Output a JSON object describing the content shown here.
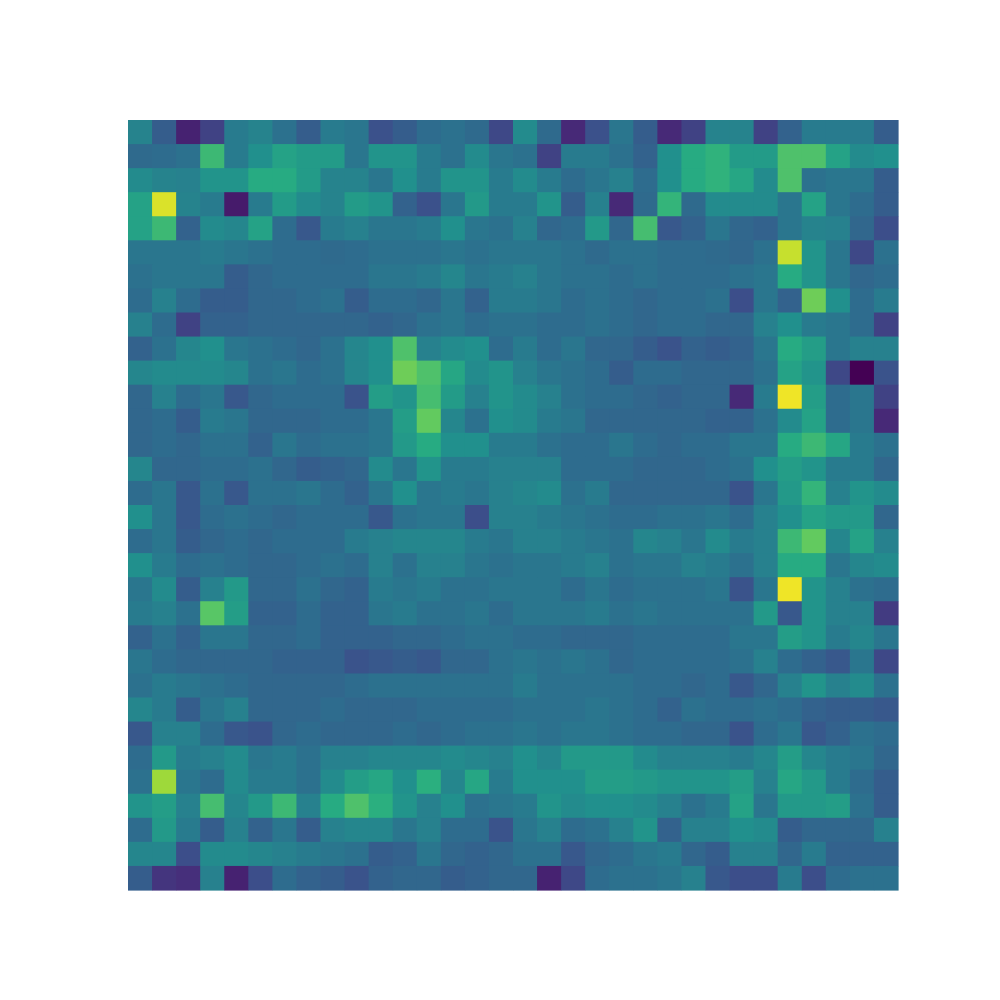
{
  "chart_data": {
    "type": "heatmap",
    "colormap": "viridis",
    "axes_visible": false,
    "grid": false,
    "legend": "none",
    "rows": 32,
    "cols": 32,
    "value_range": [
      0,
      1
    ],
    "values": [
      [
        0.45,
        0.3,
        0.1,
        0.2,
        0.42,
        0.45,
        0.38,
        0.3,
        0.42,
        0.4,
        0.25,
        0.3,
        0.36,
        0.38,
        0.35,
        0.22,
        0.48,
        0.35,
        0.12,
        0.25,
        0.4,
        0.3,
        0.12,
        0.2,
        0.45,
        0.45,
        0.2,
        0.32,
        0.42,
        0.42,
        0.42,
        0.3
      ],
      [
        0.35,
        0.36,
        0.38,
        0.68,
        0.42,
        0.5,
        0.58,
        0.55,
        0.55,
        0.4,
        0.52,
        0.52,
        0.42,
        0.38,
        0.48,
        0.4,
        0.38,
        0.2,
        0.42,
        0.42,
        0.38,
        0.32,
        0.5,
        0.62,
        0.65,
        0.55,
        0.55,
        0.72,
        0.72,
        0.58,
        0.48,
        0.5
      ],
      [
        0.48,
        0.45,
        0.44,
        0.52,
        0.52,
        0.62,
        0.62,
        0.55,
        0.45,
        0.45,
        0.4,
        0.5,
        0.42,
        0.52,
        0.52,
        0.42,
        0.48,
        0.42,
        0.36,
        0.4,
        0.44,
        0.36,
        0.5,
        0.62,
        0.65,
        0.6,
        0.48,
        0.72,
        0.38,
        0.4,
        0.4,
        0.3
      ],
      [
        0.58,
        0.95,
        0.45,
        0.42,
        0.08,
        0.42,
        0.55,
        0.48,
        0.45,
        0.55,
        0.52,
        0.32,
        0.25,
        0.4,
        0.54,
        0.42,
        0.42,
        0.52,
        0.3,
        0.44,
        0.12,
        0.35,
        0.66,
        0.35,
        0.48,
        0.48,
        0.48,
        0.4,
        0.58,
        0.4,
        0.36,
        0.3
      ],
      [
        0.58,
        0.68,
        0.32,
        0.48,
        0.46,
        0.58,
        0.36,
        0.28,
        0.42,
        0.44,
        0.4,
        0.4,
        0.42,
        0.5,
        0.4,
        0.38,
        0.44,
        0.34,
        0.36,
        0.54,
        0.34,
        0.7,
        0.28,
        0.32,
        0.4,
        0.34,
        0.32,
        0.4,
        0.45,
        0.44,
        0.34,
        0.24
      ],
      [
        0.4,
        0.4,
        0.4,
        0.42,
        0.4,
        0.38,
        0.36,
        0.36,
        0.35,
        0.36,
        0.38,
        0.38,
        0.38,
        0.4,
        0.38,
        0.4,
        0.4,
        0.4,
        0.38,
        0.35,
        0.38,
        0.38,
        0.36,
        0.36,
        0.35,
        0.34,
        0.38,
        0.92,
        0.52,
        0.4,
        0.22,
        0.38
      ],
      [
        0.38,
        0.4,
        0.4,
        0.4,
        0.3,
        0.34,
        0.36,
        0.36,
        0.36,
        0.36,
        0.4,
        0.4,
        0.42,
        0.46,
        0.4,
        0.42,
        0.44,
        0.4,
        0.38,
        0.38,
        0.36,
        0.38,
        0.36,
        0.36,
        0.36,
        0.38,
        0.4,
        0.62,
        0.52,
        0.4,
        0.34,
        0.36
      ],
      [
        0.36,
        0.44,
        0.36,
        0.3,
        0.3,
        0.34,
        0.34,
        0.36,
        0.38,
        0.3,
        0.36,
        0.36,
        0.34,
        0.4,
        0.32,
        0.42,
        0.42,
        0.4,
        0.36,
        0.38,
        0.36,
        0.34,
        0.36,
        0.36,
        0.38,
        0.24,
        0.4,
        0.32,
        0.78,
        0.5,
        0.36,
        0.42
      ],
      [
        0.44,
        0.36,
        0.2,
        0.32,
        0.32,
        0.34,
        0.34,
        0.34,
        0.34,
        0.34,
        0.32,
        0.34,
        0.38,
        0.4,
        0.36,
        0.38,
        0.38,
        0.36,
        0.36,
        0.38,
        0.36,
        0.34,
        0.36,
        0.36,
        0.34,
        0.34,
        0.44,
        0.5,
        0.42,
        0.4,
        0.36,
        0.2
      ],
      [
        0.32,
        0.38,
        0.46,
        0.5,
        0.4,
        0.38,
        0.36,
        0.34,
        0.38,
        0.46,
        0.5,
        0.72,
        0.44,
        0.48,
        0.5,
        0.36,
        0.42,
        0.36,
        0.4,
        0.34,
        0.34,
        0.3,
        0.26,
        0.32,
        0.3,
        0.32,
        0.4,
        0.62,
        0.56,
        0.4,
        0.44,
        0.44
      ],
      [
        0.46,
        0.48,
        0.48,
        0.48,
        0.46,
        0.38,
        0.4,
        0.36,
        0.38,
        0.46,
        0.5,
        0.78,
        0.72,
        0.6,
        0.48,
        0.52,
        0.44,
        0.4,
        0.38,
        0.36,
        0.3,
        0.36,
        0.36,
        0.34,
        0.34,
        0.34,
        0.38,
        0.58,
        0.52,
        0.22,
        0.0,
        0.26
      ],
      [
        0.34,
        0.44,
        0.36,
        0.4,
        0.28,
        0.34,
        0.36,
        0.36,
        0.36,
        0.26,
        0.56,
        0.52,
        0.7,
        0.55,
        0.44,
        0.52,
        0.48,
        0.44,
        0.38,
        0.36,
        0.36,
        0.34,
        0.32,
        0.34,
        0.34,
        0.12,
        0.42,
        0.98,
        0.56,
        0.36,
        0.4,
        0.2
      ],
      [
        0.34,
        0.36,
        0.3,
        0.42,
        0.4,
        0.34,
        0.34,
        0.34,
        0.36,
        0.36,
        0.4,
        0.56,
        0.76,
        0.46,
        0.38,
        0.5,
        0.48,
        0.42,
        0.4,
        0.34,
        0.34,
        0.34,
        0.34,
        0.34,
        0.32,
        0.32,
        0.38,
        0.48,
        0.58,
        0.36,
        0.4,
        0.12
      ],
      [
        0.34,
        0.36,
        0.34,
        0.38,
        0.38,
        0.32,
        0.4,
        0.36,
        0.38,
        0.38,
        0.4,
        0.54,
        0.62,
        0.5,
        0.5,
        0.42,
        0.42,
        0.38,
        0.36,
        0.36,
        0.4,
        0.36,
        0.34,
        0.36,
        0.36,
        0.4,
        0.4,
        0.62,
        0.68,
        0.6,
        0.42,
        0.38
      ],
      [
        0.46,
        0.34,
        0.34,
        0.36,
        0.36,
        0.38,
        0.34,
        0.3,
        0.32,
        0.34,
        0.48,
        0.4,
        0.52,
        0.42,
        0.42,
        0.44,
        0.44,
        0.44,
        0.36,
        0.36,
        0.36,
        0.34,
        0.34,
        0.34,
        0.36,
        0.38,
        0.5,
        0.56,
        0.52,
        0.42,
        0.42,
        0.34
      ],
      [
        0.36,
        0.4,
        0.28,
        0.38,
        0.28,
        0.38,
        0.38,
        0.4,
        0.36,
        0.32,
        0.4,
        0.5,
        0.4,
        0.42,
        0.4,
        0.44,
        0.46,
        0.48,
        0.38,
        0.42,
        0.34,
        0.34,
        0.34,
        0.34,
        0.34,
        0.26,
        0.4,
        0.54,
        0.66,
        0.44,
        0.52,
        0.48
      ],
      [
        0.5,
        0.4,
        0.28,
        0.36,
        0.38,
        0.36,
        0.34,
        0.36,
        0.36,
        0.36,
        0.28,
        0.38,
        0.4,
        0.4,
        0.24,
        0.44,
        0.44,
        0.42,
        0.4,
        0.38,
        0.36,
        0.36,
        0.38,
        0.38,
        0.4,
        0.36,
        0.44,
        0.5,
        0.58,
        0.54,
        0.54,
        0.34
      ],
      [
        0.36,
        0.4,
        0.3,
        0.34,
        0.36,
        0.34,
        0.36,
        0.36,
        0.36,
        0.42,
        0.44,
        0.46,
        0.46,
        0.46,
        0.42,
        0.4,
        0.44,
        0.44,
        0.42,
        0.4,
        0.38,
        0.46,
        0.44,
        0.4,
        0.48,
        0.42,
        0.44,
        0.68,
        0.76,
        0.46,
        0.58,
        0.44
      ],
      [
        0.5,
        0.42,
        0.36,
        0.38,
        0.36,
        0.34,
        0.34,
        0.36,
        0.38,
        0.36,
        0.44,
        0.38,
        0.44,
        0.44,
        0.4,
        0.38,
        0.4,
        0.4,
        0.42,
        0.44,
        0.38,
        0.4,
        0.4,
        0.44,
        0.42,
        0.38,
        0.44,
        0.62,
        0.62,
        0.4,
        0.46,
        0.48
      ],
      [
        0.4,
        0.48,
        0.3,
        0.44,
        0.54,
        0.34,
        0.34,
        0.38,
        0.34,
        0.32,
        0.42,
        0.4,
        0.42,
        0.38,
        0.38,
        0.4,
        0.4,
        0.4,
        0.36,
        0.4,
        0.36,
        0.38,
        0.38,
        0.38,
        0.4,
        0.26,
        0.4,
        0.98,
        0.52,
        0.44,
        0.38,
        0.36
      ],
      [
        0.42,
        0.44,
        0.38,
        0.74,
        0.56,
        0.32,
        0.32,
        0.36,
        0.32,
        0.32,
        0.4,
        0.42,
        0.38,
        0.38,
        0.4,
        0.36,
        0.4,
        0.4,
        0.4,
        0.42,
        0.38,
        0.4,
        0.38,
        0.38,
        0.38,
        0.38,
        0.54,
        0.28,
        0.52,
        0.44,
        0.44,
        0.18
      ],
      [
        0.32,
        0.38,
        0.32,
        0.4,
        0.4,
        0.34,
        0.34,
        0.36,
        0.32,
        0.32,
        0.32,
        0.34,
        0.34,
        0.36,
        0.38,
        0.38,
        0.36,
        0.36,
        0.34,
        0.34,
        0.34,
        0.36,
        0.36,
        0.36,
        0.36,
        0.4,
        0.4,
        0.56,
        0.52,
        0.42,
        0.46,
        0.4
      ],
      [
        0.4,
        0.36,
        0.34,
        0.34,
        0.34,
        0.34,
        0.32,
        0.32,
        0.32,
        0.26,
        0.28,
        0.3,
        0.28,
        0.34,
        0.34,
        0.38,
        0.4,
        0.38,
        0.4,
        0.38,
        0.34,
        0.36,
        0.36,
        0.36,
        0.36,
        0.38,
        0.44,
        0.36,
        0.32,
        0.28,
        0.4,
        0.22
      ],
      [
        0.38,
        0.42,
        0.4,
        0.38,
        0.36,
        0.34,
        0.34,
        0.34,
        0.34,
        0.36,
        0.38,
        0.38,
        0.38,
        0.38,
        0.38,
        0.38,
        0.42,
        0.38,
        0.38,
        0.38,
        0.38,
        0.36,
        0.36,
        0.34,
        0.36,
        0.28,
        0.34,
        0.44,
        0.52,
        0.44,
        0.48,
        0.38
      ],
      [
        0.46,
        0.42,
        0.3,
        0.4,
        0.44,
        0.34,
        0.34,
        0.34,
        0.36,
        0.34,
        0.34,
        0.34,
        0.36,
        0.36,
        0.36,
        0.36,
        0.38,
        0.38,
        0.38,
        0.4,
        0.38,
        0.36,
        0.32,
        0.38,
        0.36,
        0.36,
        0.38,
        0.36,
        0.32,
        0.3,
        0.3,
        0.28
      ],
      [
        0.28,
        0.44,
        0.44,
        0.36,
        0.28,
        0.26,
        0.34,
        0.36,
        0.34,
        0.34,
        0.34,
        0.36,
        0.34,
        0.36,
        0.38,
        0.38,
        0.4,
        0.38,
        0.4,
        0.4,
        0.38,
        0.36,
        0.36,
        0.34,
        0.34,
        0.26,
        0.36,
        0.4,
        0.28,
        0.32,
        0.38,
        0.36
      ],
      [
        0.36,
        0.54,
        0.42,
        0.44,
        0.48,
        0.4,
        0.42,
        0.38,
        0.44,
        0.44,
        0.46,
        0.46,
        0.46,
        0.48,
        0.46,
        0.44,
        0.5,
        0.46,
        0.54,
        0.54,
        0.54,
        0.48,
        0.44,
        0.44,
        0.44,
        0.42,
        0.46,
        0.56,
        0.46,
        0.42,
        0.4,
        0.34
      ],
      [
        0.38,
        0.86,
        0.4,
        0.36,
        0.48,
        0.42,
        0.42,
        0.38,
        0.48,
        0.56,
        0.6,
        0.5,
        0.64,
        0.46,
        0.6,
        0.42,
        0.5,
        0.5,
        0.5,
        0.56,
        0.56,
        0.54,
        0.52,
        0.52,
        0.52,
        0.56,
        0.44,
        0.6,
        0.54,
        0.42,
        0.36,
        0.3
      ],
      [
        0.52,
        0.56,
        0.44,
        0.7,
        0.46,
        0.54,
        0.68,
        0.44,
        0.62,
        0.72,
        0.64,
        0.52,
        0.44,
        0.5,
        0.38,
        0.4,
        0.42,
        0.52,
        0.48,
        0.5,
        0.5,
        0.48,
        0.44,
        0.38,
        0.42,
        0.58,
        0.4,
        0.54,
        0.54,
        0.56,
        0.38,
        0.3
      ],
      [
        0.36,
        0.54,
        0.42,
        0.3,
        0.44,
        0.32,
        0.4,
        0.3,
        0.44,
        0.46,
        0.46,
        0.4,
        0.44,
        0.36,
        0.36,
        0.26,
        0.4,
        0.44,
        0.36,
        0.38,
        0.44,
        0.52,
        0.32,
        0.44,
        0.44,
        0.5,
        0.48,
        0.3,
        0.34,
        0.34,
        0.34,
        0.44
      ],
      [
        0.46,
        0.46,
        0.24,
        0.48,
        0.48,
        0.46,
        0.44,
        0.42,
        0.4,
        0.38,
        0.3,
        0.32,
        0.4,
        0.34,
        0.32,
        0.34,
        0.38,
        0.38,
        0.28,
        0.34,
        0.36,
        0.4,
        0.42,
        0.34,
        0.3,
        0.44,
        0.44,
        0.34,
        0.42,
        0.32,
        0.32,
        0.32
      ],
      [
        0.3,
        0.16,
        0.14,
        0.44,
        0.1,
        0.24,
        0.36,
        0.32,
        0.3,
        0.26,
        0.32,
        0.34,
        0.34,
        0.3,
        0.32,
        0.34,
        0.34,
        0.1,
        0.22,
        0.36,
        0.38,
        0.38,
        0.4,
        0.44,
        0.28,
        0.24,
        0.24,
        0.42,
        0.24,
        0.36,
        0.38,
        0.38
      ]
    ]
  }
}
